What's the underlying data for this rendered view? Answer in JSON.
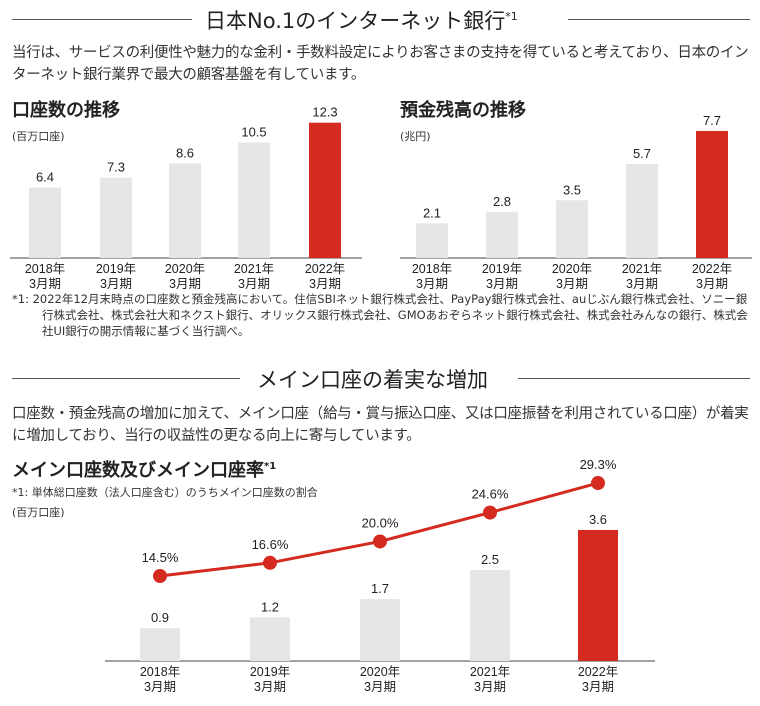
{
  "section1": {
    "title": "日本No.1のインターネット銀行",
    "title_sup": "*1",
    "paragraph": "当行は、サービスの利便性や魅力的な金利・手数料設定によりお客さまの支持を得ていると考えており、日本のインターネット銀行業界で最大の顧客基盤を有しています。",
    "footnote": "*1: 2022年12月末時点の口座数と預金残高において。住信SBIネット銀行株式会社、PayPay銀行株式会社、auじぶん銀行株式会社、ソニー銀行株式会社、株式会社大和ネクスト銀行、オリックス銀行株式会社、GMOあおぞらネット銀行株式会社、株式会社みんなの銀行、株式会社UI銀行の開示情報に基づく当行調べ。"
  },
  "section2": {
    "title": "メイン口座の着実な増加",
    "paragraph": "口座数・預金残高の増加に加えて、メイン口座（給与・賞与振込口座、又は口座振替を利用されている口座）が着実に増加しており、当行の収益性の更なる向上に寄与しています。"
  },
  "colors": {
    "bar": "#e6e6e6",
    "highlight": "#d42a1f",
    "line": "#d42a1f"
  },
  "chart_data": [
    {
      "type": "bar",
      "title": "口座数の推移",
      "unit": "(百万口座)",
      "categories": [
        "2018年 3月期",
        "2019年 3月期",
        "2020年 3月期",
        "2021年 3月期",
        "2022年 3月期"
      ],
      "values": [
        6.4,
        7.3,
        8.6,
        10.5,
        12.3
      ],
      "labels": [
        "6.4",
        "7.3",
        "8.6",
        "10.5",
        "12.3"
      ],
      "highlight_index": 4
    },
    {
      "type": "bar",
      "title": "預金残高の推移",
      "unit": "(兆円)",
      "categories": [
        "2018年 3月期",
        "2019年 3月期",
        "2020年 3月期",
        "2021年 3月期",
        "2022年 3月期"
      ],
      "values": [
        2.1,
        2.8,
        3.5,
        5.7,
        7.7
      ],
      "labels": [
        "2.1",
        "2.8",
        "3.5",
        "5.7",
        "7.7"
      ],
      "highlight_index": 4
    },
    {
      "type": "bar+line",
      "title": "メイン口座数及びメイン口座率",
      "title_sup": "*1",
      "footnote": "*1: 単体総口座数（法人口座含む）のうちメイン口座数の割合",
      "unit": "(百万口座)",
      "categories": [
        "2018年 3月期",
        "2019年 3月期",
        "2020年 3月期",
        "2021年 3月期",
        "2022年 3月期"
      ],
      "values": [
        0.9,
        1.2,
        1.7,
        2.5,
        3.6
      ],
      "labels": [
        "0.9",
        "1.2",
        "1.7",
        "2.5",
        "3.6"
      ],
      "line_values": [
        14.5,
        16.6,
        20.0,
        24.6,
        29.3
      ],
      "line_labels": [
        "14.5%",
        "16.6%",
        "20.0%",
        "24.6%",
        "29.3%"
      ],
      "highlight_index": 4
    }
  ]
}
